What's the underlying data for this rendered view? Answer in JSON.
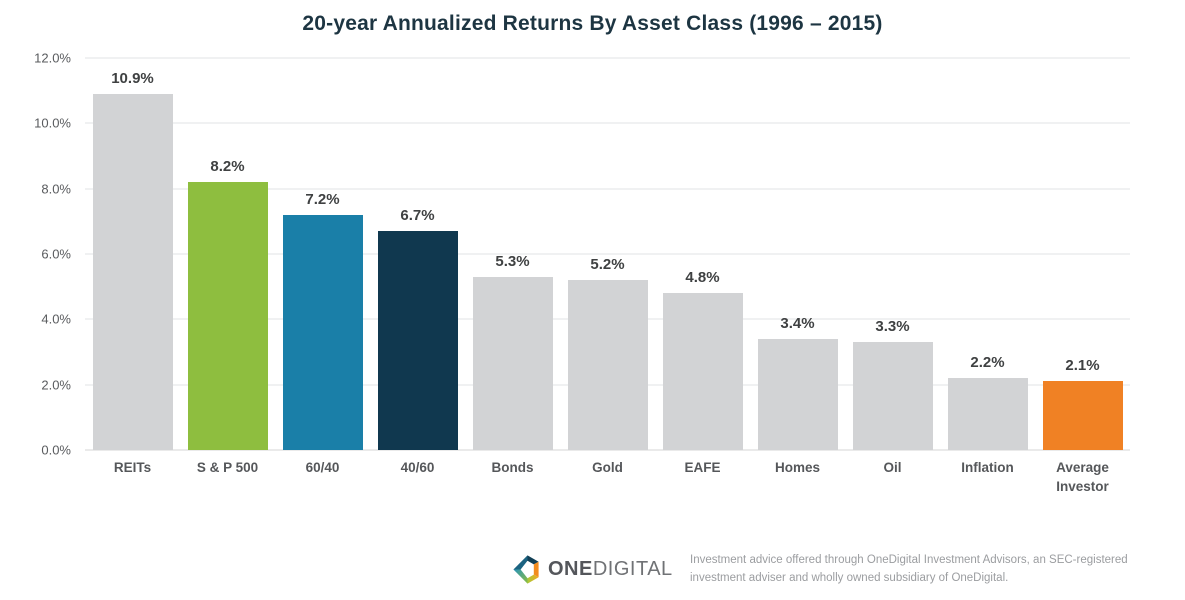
{
  "chart": {
    "title": "20-year Annualized Returns By Asset Class (1996 – 2015)"
  },
  "chart_data": {
    "type": "bar",
    "title": "20-year Annualized Returns By Asset Class (1996 – 2015)",
    "categories": [
      "REITs",
      "S & P 500",
      "60/40",
      "40/60",
      "Bonds",
      "Gold",
      "EAFE",
      "Homes",
      "Oil",
      "Inflation",
      "Average Investor"
    ],
    "values": [
      10.9,
      8.2,
      7.2,
      6.7,
      5.3,
      5.2,
      4.8,
      3.4,
      3.3,
      2.2,
      2.1
    ],
    "value_labels": [
      "10.9%",
      "8.2%",
      "7.2%",
      "6.7%",
      "5.3%",
      "5.2%",
      "4.8%",
      "3.4%",
      "3.3%",
      "2.2%",
      "2.1%"
    ],
    "bar_colors": [
      "#d2d3d5",
      "#8ebe3f",
      "#1a7fa8",
      "#10384f",
      "#d2d3d5",
      "#d2d3d5",
      "#d2d3d5",
      "#d2d3d5",
      "#d2d3d5",
      "#d2d3d5",
      "#f08124"
    ],
    "xlabel": "",
    "ylabel": "",
    "ylim": [
      0,
      12
    ],
    "ytick_step": 2,
    "ytick_labels": [
      "0.0%",
      "2.0%",
      "4.0%",
      "6.0%",
      "8.0%",
      "10.0%",
      "12.0%"
    ],
    "grid": true,
    "legend": false
  },
  "footer": {
    "logo_bold": "ONE",
    "logo_light": "DIGITAL",
    "disclaimer": "Investment advice offered through OneDigital Investment Advisors, an SEC-registered investment adviser and wholly owned subsidiary of OneDigital."
  },
  "colors": {
    "title_text": "#1d3542",
    "gridline": "#e2e3e4",
    "axis_text": "#595b5e",
    "value_label_text": "#3f4142",
    "bar_default": "#d2d3d5",
    "accent_green": "#8ebe3f",
    "accent_blue": "#1a7fa8",
    "accent_navy": "#10384f",
    "accent_orange": "#f08124"
  }
}
